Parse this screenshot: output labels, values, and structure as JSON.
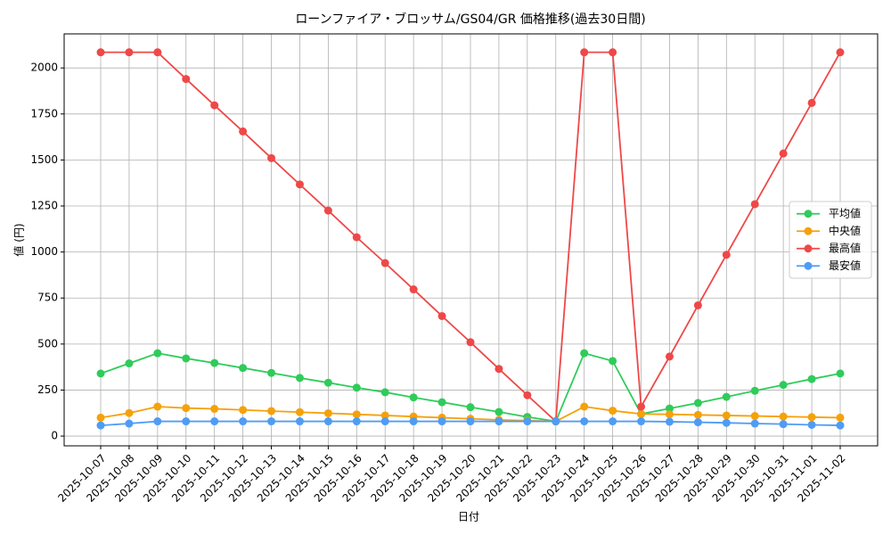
{
  "chart_data": {
    "type": "line",
    "title": "ローンファイア・ブロッサム/GS04/GR 価格推移(過去30日間)",
    "x_label": "日付",
    "y_label": "値 (円)",
    "categories": [
      "2025-10-07",
      "2025-10-08",
      "2025-10-09",
      "2025-10-10",
      "2025-10-11",
      "2025-10-12",
      "2025-10-13",
      "2025-10-14",
      "2025-10-15",
      "2025-10-16",
      "2025-10-17",
      "2025-10-18",
      "2025-10-19",
      "2025-10-20",
      "2025-10-21",
      "2025-10-22",
      "2025-10-23",
      "2025-10-24",
      "2025-10-25",
      "2025-10-26",
      "2025-10-27",
      "2025-10-28",
      "2025-10-29",
      "2025-10-30",
      "2025-10-31",
      "2025-11-01",
      "2025-11-02"
    ],
    "series": [
      {
        "name": "平均値",
        "color": "#2ecc5a",
        "values": [
          340,
          395,
          450,
          422,
          397,
          370,
          343,
          316,
          290,
          263,
          238,
          210,
          184,
          157,
          131,
          104,
          80,
          450,
          408,
          120,
          150,
          180,
          213,
          246,
          278,
          310,
          340
        ]
      },
      {
        "name": "中央値",
        "color": "#f5a10a",
        "values": [
          100,
          125,
          160,
          152,
          148,
          142,
          136,
          130,
          124,
          118,
          112,
          106,
          100,
          94,
          88,
          84,
          80,
          160,
          138,
          120,
          118,
          115,
          112,
          109,
          106,
          103,
          100
        ]
      },
      {
        "name": "最高値",
        "color": "#ef4848",
        "values": [
          2085,
          2085,
          2085,
          1940,
          1797,
          1655,
          1510,
          1367,
          1225,
          1080,
          940,
          797,
          652,
          510,
          365,
          222,
          80,
          2085,
          2085,
          160,
          432,
          710,
          985,
          1260,
          1535,
          1810,
          2085
        ]
      },
      {
        "name": "最安値",
        "color": "#4f9cf5",
        "values": [
          58,
          68,
          80,
          80,
          80,
          80,
          80,
          80,
          80,
          80,
          80,
          80,
          80,
          80,
          80,
          80,
          80,
          80,
          80,
          80,
          78,
          75,
          72,
          68,
          65,
          61,
          58
        ]
      }
    ],
    "ylim": [
      -53,
      2185
    ],
    "yticks": [
      0,
      250,
      500,
      750,
      1000,
      1250,
      1500,
      1750,
      2000
    ],
    "grid": true,
    "legend": "center right"
  }
}
